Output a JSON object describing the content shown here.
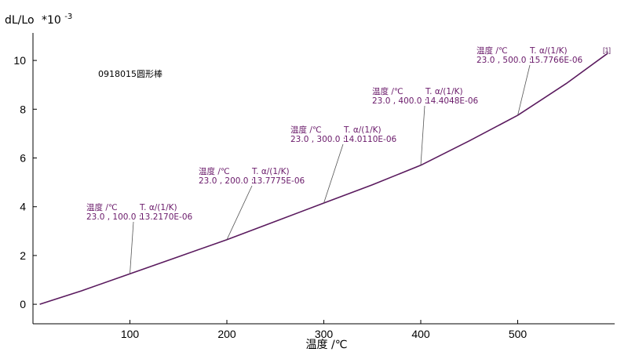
{
  "colors": {
    "series": "#5a1a5e",
    "annotation_text": "#6a1a6a",
    "leader": "#555555",
    "axis": "#000000"
  },
  "chart_data": {
    "type": "line",
    "ylabel": "dL/Lo",
    "ylabel_exponent_prefix": "*10",
    "ylabel_exponent": "-3",
    "xlabel": "温度 /℃",
    "sample_label": "0918015圆形棒",
    "corner_marker": "[1]",
    "xlim": [
      0,
      600
    ],
    "ylim": [
      -0.8,
      11.0
    ],
    "x_ticks": [
      100,
      200,
      300,
      400,
      500
    ],
    "x_tick_labels": [
      "100",
      "200",
      "300",
      "400",
      "500"
    ],
    "y_ticks": [
      0,
      2,
      4,
      6,
      8,
      10
    ],
    "y_tick_labels": [
      "0",
      "2",
      "4",
      "6",
      "8",
      "10"
    ],
    "series": [
      {
        "x": [
          7,
          50,
          100,
          150,
          200,
          250,
          300,
          350,
          400,
          450,
          500,
          550,
          593
        ],
        "y": [
          0.0,
          0.55,
          1.25,
          1.95,
          2.65,
          3.4,
          4.15,
          4.9,
          5.7,
          6.7,
          7.75,
          9.05,
          10.3
        ]
      }
    ],
    "annotations": [
      {
        "label_temp": "温度 /℃",
        "label_coef": "T. α/(1/K)",
        "value_temp": "23.0 , 100.0 :",
        "value_coef": "13.2170E-06",
        "x": 100,
        "y": 1.25
      },
      {
        "label_temp": "温度 /℃",
        "label_coef": "T. α/(1/K)",
        "value_temp": "23.0 , 200.0 :",
        "value_coef": "13.7775E-06",
        "x": 200,
        "y": 2.65
      },
      {
        "label_temp": "温度 /℃",
        "label_coef": "T. α/(1/K)",
        "value_temp": "23.0 , 300.0 :",
        "value_coef": "14.0110E-06",
        "x": 300,
        "y": 4.15
      },
      {
        "label_temp": "温度 /℃",
        "label_coef": "T. α/(1/K)",
        "value_temp": "23.0 , 400.0 :",
        "value_coef": "14.4048E-06",
        "x": 400,
        "y": 5.7
      },
      {
        "label_temp": "温度 /℃",
        "label_coef": "T. α/(1/K)",
        "value_temp": "23.0 , 500.0 :",
        "value_coef": "15.7766E-06",
        "x": 500,
        "y": 7.75
      }
    ]
  }
}
